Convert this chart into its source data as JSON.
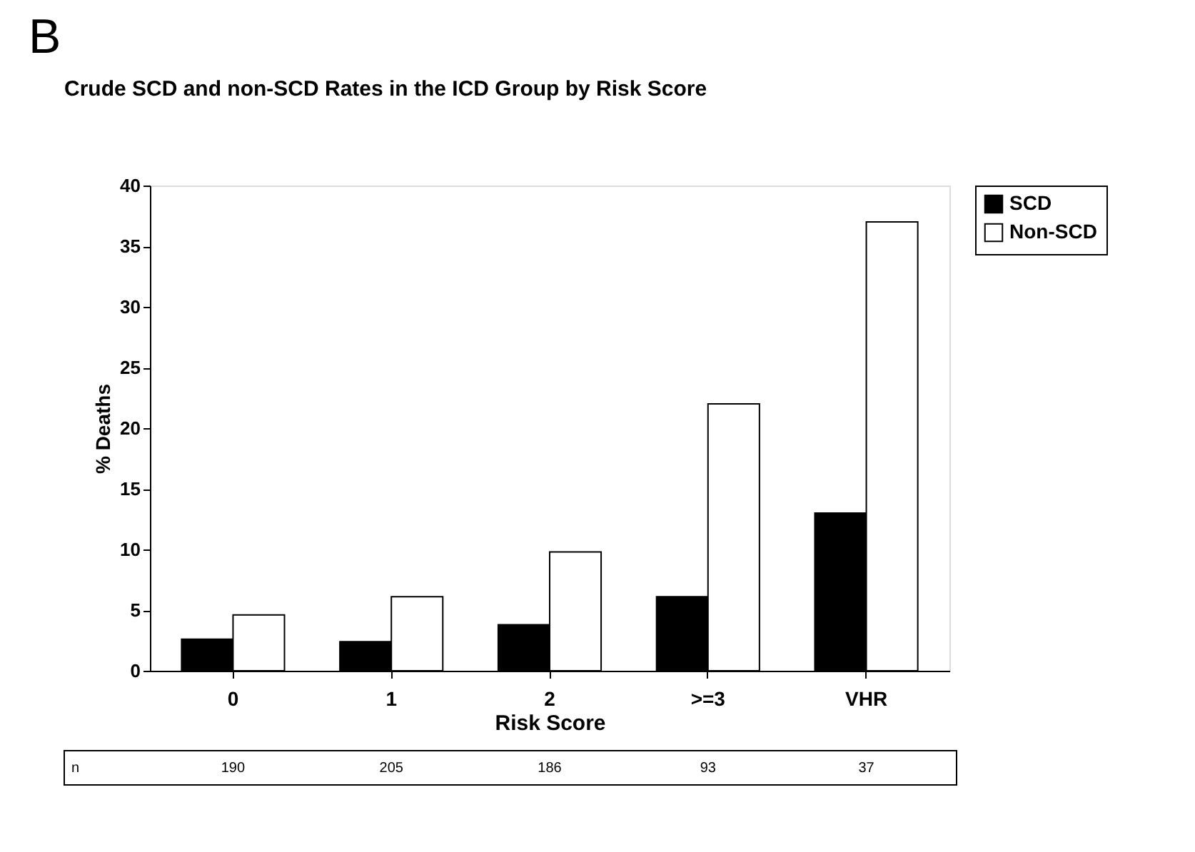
{
  "chart_data": {
    "type": "bar",
    "title": "Crude SCD and non-SCD Rates in the ICD Group by Risk Score",
    "xlabel": "Risk Score",
    "ylabel": "% Deaths",
    "categories": [
      "0",
      "1",
      "2",
      ">=3",
      "VHR"
    ],
    "series": [
      {
        "name": "SCD",
        "color": "#000000",
        "values": [
          2.6,
          2.4,
          3.8,
          6.1,
          13
        ]
      },
      {
        "name": "Non-SCD",
        "color": "#ffffff",
        "values": [
          4.6,
          6.1,
          9.8,
          22,
          37
        ]
      }
    ],
    "ylim": [
      0,
      40
    ],
    "yticks": [
      0,
      5,
      10,
      15,
      20,
      25,
      30,
      35,
      40
    ],
    "grid": false,
    "legend": "right",
    "annotations": [
      "B",
      "n",
      "190",
      "205",
      "186",
      "93",
      "37"
    ]
  }
}
